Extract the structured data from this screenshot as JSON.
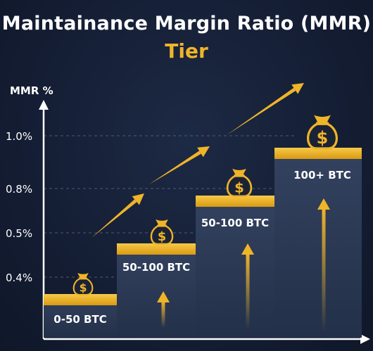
{
  "chart_data": {
    "type": "bar",
    "title": "Maintainance Margin Ratio (MMR)",
    "subtitle": "Tier",
    "ylabel": "MMR %",
    "xlabel": "",
    "y_tick_labels": [
      "1.0%",
      "0.8%",
      "0.5%",
      "0.4%"
    ],
    "categories": [
      "0-50 BTC",
      "50-100 BTC",
      "50-100 BTC",
      "100+ BTC"
    ],
    "values": [
      0.4,
      0.5,
      0.8,
      1.0
    ],
    "grid": true,
    "legend": "none",
    "colors": {
      "background": "#141d33",
      "step": "#2c3a55",
      "step_top": "#f0b429",
      "accent": "#f0b429",
      "text": "#ffffff",
      "axis": "#ffffff",
      "grid": "#5b6780"
    },
    "icons": [
      "money-bag-icon",
      "money-bag-icon",
      "money-bag-icon",
      "money-bag-icon"
    ],
    "decorations": [
      "up-arrow-icon",
      "diagonal-trend-arrow-icon"
    ]
  }
}
